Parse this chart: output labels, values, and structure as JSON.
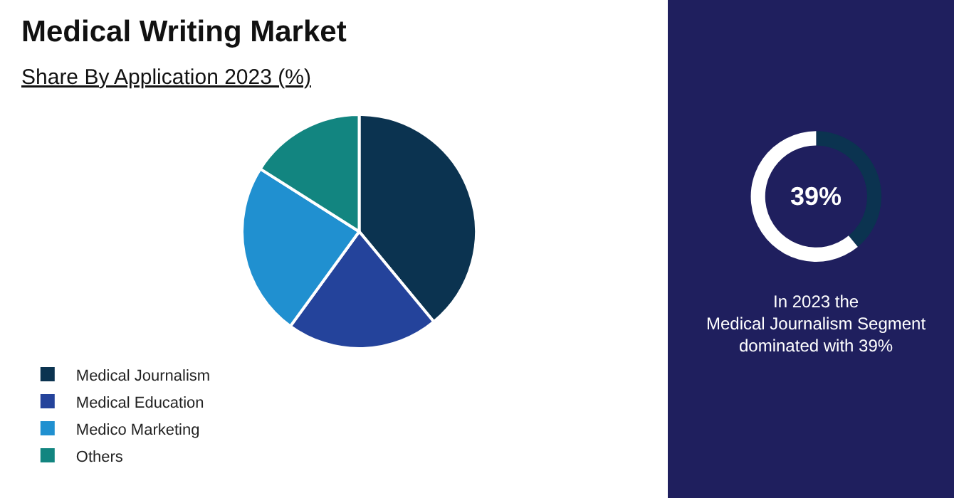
{
  "chart_data": [
    {
      "type": "pie",
      "title": "Medical Writing Market",
      "subtitle": "Share By Application 2023 (%)",
      "categories": [
        "Medical Journalism",
        "Medical Education",
        "Medico Marketing",
        "Others"
      ],
      "values": [
        39,
        21,
        24,
        16
      ],
      "colors": [
        "#0b3350",
        "#24439b",
        "#2090d0",
        "#128580"
      ],
      "legend": "bottom"
    },
    {
      "type": "donut",
      "categories": [
        null,
        null
      ],
      "values": [
        39,
        61
      ],
      "colors": [
        "#0b3350",
        "#ffffff"
      ],
      "annotations": [
        "39%",
        "In 2023 the\nMedical Journalism Segment\ndominated with 39%"
      ]
    }
  ]
}
